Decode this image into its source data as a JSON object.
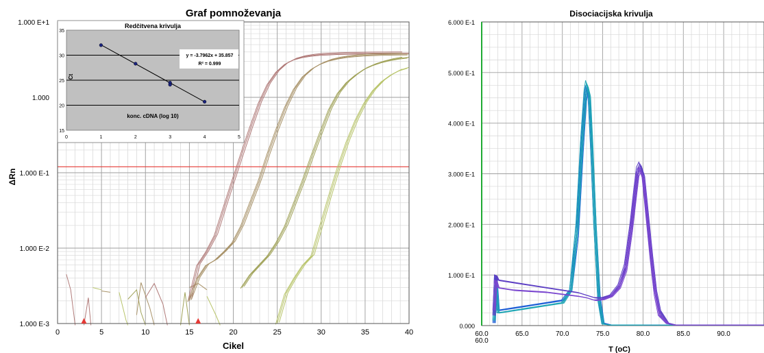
{
  "chart_data": [
    {
      "type": "line",
      "title": "Graf pomnoževanja",
      "xlabel": "Cikel",
      "ylabel": "ΔRn",
      "yscale": "log",
      "xlim": [
        0,
        40
      ],
      "ylim": [
        0.001,
        10
      ],
      "xticks": [
        0,
        5,
        10,
        15,
        20,
        25,
        30,
        35,
        40
      ],
      "yticks": [
        {
          "value": 10,
          "label": "1.000 E+1"
        },
        {
          "value": 1,
          "label": "1.000"
        },
        {
          "value": 0.1,
          "label": "1.000 E-1"
        },
        {
          "value": 0.01,
          "label": "1.000 E-2"
        },
        {
          "value": 0.001,
          "label": "1.000 E-3"
        }
      ],
      "grid": true,
      "threshold": 0.12,
      "threshold_color": "#e53935",
      "baseline_markers": [
        3,
        16
      ],
      "marker_color": "#e53935",
      "series": [
        {
          "color": "#b07a78",
          "x": [
            15,
            16,
            17,
            18,
            19,
            20,
            21,
            22,
            23,
            24,
            25,
            26,
            27,
            28,
            29,
            30,
            31,
            32,
            33,
            34,
            35,
            36,
            37,
            38,
            39,
            40
          ],
          "y": [
            0.002,
            0.006,
            0.009,
            0.015,
            0.035,
            0.08,
            0.18,
            0.4,
            0.85,
            1.5,
            2.2,
            2.8,
            3.2,
            3.45,
            3.6,
            3.7,
            3.75,
            3.8,
            3.82,
            3.84,
            3.85,
            3.86,
            3.86,
            3.87,
            3.87,
            3.87
          ]
        },
        {
          "color": "#a89268",
          "x": [
            15,
            16,
            17,
            18,
            19,
            20,
            21,
            22,
            23,
            24,
            25,
            26,
            27,
            28,
            29,
            30,
            31,
            32,
            33,
            34,
            35,
            36,
            37,
            38,
            39,
            40
          ],
          "y": [
            0.002,
            0.004,
            0.006,
            0.007,
            0.009,
            0.012,
            0.02,
            0.04,
            0.08,
            0.18,
            0.38,
            0.75,
            1.3,
            1.9,
            2.4,
            2.8,
            3.1,
            3.3,
            3.45,
            3.55,
            3.62,
            3.67,
            3.7,
            3.72,
            3.74,
            3.75
          ]
        },
        {
          "color": "#a1a35a",
          "x": [
            21,
            22,
            23,
            24,
            25,
            26,
            27,
            28,
            29,
            30,
            31,
            32,
            33,
            34,
            35,
            36,
            37,
            38,
            39,
            40
          ],
          "y": [
            0.003,
            0.0045,
            0.006,
            0.008,
            0.012,
            0.02,
            0.04,
            0.08,
            0.17,
            0.35,
            0.7,
            1.15,
            1.6,
            2.0,
            2.4,
            2.7,
            2.95,
            3.15,
            3.3,
            3.4
          ]
        },
        {
          "color": "#b8c46a",
          "x": [
            25,
            26,
            27,
            28,
            29,
            30,
            31,
            32,
            33,
            34,
            35,
            36,
            37,
            38,
            39,
            40
          ],
          "y": [
            0.001,
            0.0025,
            0.004,
            0.006,
            0.008,
            0.02,
            0.05,
            0.12,
            0.26,
            0.5,
            0.85,
            1.25,
            1.65,
            2.0,
            2.3,
            2.5
          ]
        }
      ],
      "inset": {
        "type": "scatter",
        "title": "Redčitvena krivulja",
        "xlabel": "konc. cDNA (log 10)",
        "ylabel": "Ct",
        "xlim": [
          0,
          5
        ],
        "ylim": [
          15,
          35
        ],
        "xticks": [
          0,
          1,
          2,
          3,
          4,
          5
        ],
        "yticks": [
          15,
          20,
          25,
          30,
          35
        ],
        "points": [
          [
            1,
            32.0
          ],
          [
            2,
            28.3
          ],
          [
            3,
            24.5
          ],
          [
            3,
            24.1
          ],
          [
            4,
            20.7
          ]
        ],
        "equation": "y = -3.7962x + 35.857",
        "r2": "R² = 0.999",
        "background": "#c0c0c0",
        "point_color": "#1a237e"
      }
    },
    {
      "type": "line",
      "title": "Disociacijska krivulja",
      "xlabel": "T (oC)",
      "xlim": [
        60,
        95
      ],
      "ylim": [
        0,
        0.6
      ],
      "xticks": [
        {
          "value": 60,
          "label": "60.0"
        },
        {
          "value": 65,
          "label": "65.0"
        },
        {
          "value": 70,
          "label": "70.0"
        },
        {
          "value": 75,
          "label": "75.0"
        },
        {
          "value": 80,
          "label": "80.0"
        },
        {
          "value": 85,
          "label": "85.0"
        },
        {
          "value": 90,
          "label": "90.0"
        }
      ],
      "start_marker": "60.0",
      "start_marker_color": "#e53935",
      "yticks": [
        {
          "value": 0,
          "label": "0.000"
        },
        {
          "value": 0.1,
          "label": "1.000 E-1"
        },
        {
          "value": 0.2,
          "label": "2.000 E-1"
        },
        {
          "value": 0.3,
          "label": "3.000 E-1"
        },
        {
          "value": 0.4,
          "label": "4.000 E-1"
        },
        {
          "value": 0.5,
          "label": "5.000 E-1"
        },
        {
          "value": 0.6,
          "label": "6.000 E-1"
        }
      ],
      "grid": true,
      "series": [
        {
          "color": "#1e5fd6",
          "x": [
            61.5,
            61.7,
            62,
            64,
            66,
            68,
            70,
            71,
            71.8,
            72.4,
            72.8,
            73,
            73.3,
            73.6,
            74,
            74.5,
            75,
            76,
            80,
            95
          ],
          "y": [
            0.005,
            0.1,
            0.03,
            0.035,
            0.04,
            0.045,
            0.05,
            0.07,
            0.18,
            0.35,
            0.45,
            0.47,
            0.45,
            0.35,
            0.2,
            0.06,
            0.005,
            0.001,
            0.001,
            0.001
          ]
        },
        {
          "color": "#1fa6b5",
          "x": [
            61.5,
            61.7,
            62,
            64,
            66,
            68,
            70,
            71,
            71.8,
            72.4,
            72.8,
            73,
            73.3,
            73.6,
            74,
            74.5,
            75,
            76,
            80,
            95
          ],
          "y": [
            0.01,
            0.08,
            0.025,
            0.03,
            0.035,
            0.04,
            0.045,
            0.07,
            0.2,
            0.37,
            0.46,
            0.48,
            0.46,
            0.36,
            0.2,
            0.05,
            0.003,
            0.001,
            0.001,
            0.001
          ]
        },
        {
          "color": "#5d3fc4",
          "x": [
            61.5,
            61.7,
            62,
            64,
            66,
            68,
            70,
            72,
            73,
            74,
            75,
            76,
            77,
            77.8,
            78.5,
            79,
            79.3,
            79.6,
            80,
            80.5,
            81,
            81.5,
            82,
            83,
            84,
            95
          ],
          "y": [
            0.02,
            0.1,
            0.09,
            0.085,
            0.08,
            0.075,
            0.07,
            0.065,
            0.06,
            0.055,
            0.055,
            0.06,
            0.08,
            0.12,
            0.2,
            0.27,
            0.31,
            0.32,
            0.3,
            0.22,
            0.14,
            0.07,
            0.03,
            0.005,
            0.001,
            0.001
          ]
        },
        {
          "color": "#7a47cf",
          "x": [
            61.5,
            61.7,
            62,
            64,
            66,
            68,
            70,
            72,
            73,
            74,
            75,
            76,
            77,
            77.8,
            78.5,
            79,
            79.3,
            79.6,
            80,
            80.5,
            81,
            81.5,
            82,
            83,
            84,
            95
          ],
          "y": [
            0.03,
            0.09,
            0.075,
            0.07,
            0.068,
            0.066,
            0.062,
            0.058,
            0.055,
            0.05,
            0.052,
            0.058,
            0.075,
            0.11,
            0.19,
            0.26,
            0.3,
            0.31,
            0.29,
            0.21,
            0.13,
            0.06,
            0.02,
            0.004,
            0.001,
            0.001
          ]
        }
      ]
    }
  ]
}
